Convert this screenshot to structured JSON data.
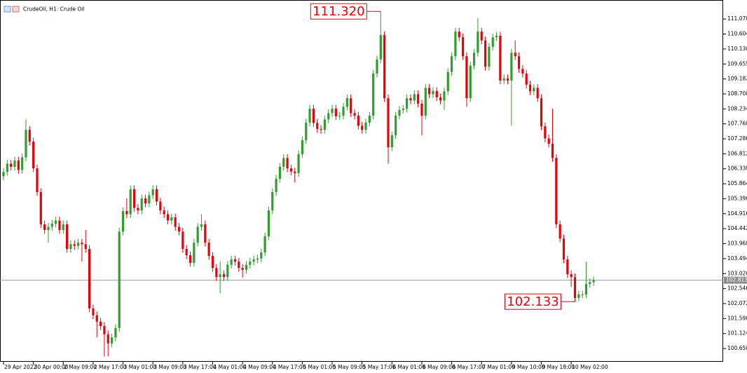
{
  "chart_data": {
    "type": "candlestick",
    "title": "CrudeOil, H1:  Crude Oil",
    "up_color": "#2f9e2f",
    "down_color": "#e8000b",
    "categories": [
      "29 Apr 2022",
      null,
      null,
      null,
      null,
      null,
      null,
      null,
      "30 Apr 00:00",
      null,
      null,
      null,
      null,
      null,
      null,
      null,
      "2 May 09:00",
      null,
      null,
      null,
      null,
      null,
      null,
      null,
      "2 May 17:00",
      null,
      null,
      null,
      null,
      null,
      null,
      null,
      "3 May 01:00",
      null,
      null,
      null,
      null,
      null,
      null,
      null,
      "3 May 09:00",
      null,
      null,
      null,
      null,
      null,
      null,
      null,
      "3 May 17:00",
      null,
      null,
      null,
      null,
      null,
      null,
      null,
      "4 May 01:00",
      null,
      null,
      null,
      null,
      null,
      null,
      null,
      "4 May 09:00",
      null,
      null,
      null,
      null,
      null,
      null,
      null,
      "4 May 17:00",
      null,
      null,
      null,
      null,
      null,
      null,
      null,
      "5 May 01:00",
      null,
      null,
      null,
      null,
      null,
      null,
      null,
      "5 May 09:00",
      null,
      null,
      null,
      null,
      null,
      null,
      null,
      "5 May 17:00",
      null,
      null,
      null,
      null,
      null,
      null,
      null,
      "6 May 01:00",
      null,
      null,
      null,
      null,
      null,
      null,
      null,
      "6 May 09:00",
      null,
      null,
      null,
      null,
      null,
      null,
      null,
      "6 May 17:00",
      null,
      null,
      null,
      null,
      null,
      null,
      null,
      "7 May 01:00",
      null,
      null,
      null,
      null,
      null,
      null,
      null,
      "9 May 10:00",
      null,
      null,
      null,
      null,
      null,
      null,
      null,
      "9 May 18:00",
      null,
      null,
      null,
      null,
      null,
      null,
      null,
      "10 May 02:00",
      null,
      null,
      null,
      null,
      null,
      null
    ],
    "open": [
      106.1,
      106.24,
      106.5,
      106.4,
      106.6,
      106.3,
      106.7,
      107.57,
      107.2,
      106.35,
      105.6,
      104.58,
      104.4,
      104.5,
      104.6,
      104.7,
      104.4,
      104.58,
      103.8,
      103.95,
      103.9,
      104.0,
      103.95,
      103.8,
      101.92,
      101.7,
      101.5,
      101.36,
      101.1,
      100.81,
      101.0,
      101.3,
      104.35,
      105.0,
      104.9,
      105.69,
      105.1,
      105.02,
      105.4,
      105.24,
      105.5,
      105.69,
      105.3,
      105.02,
      104.9,
      104.7,
      104.8,
      104.5,
      104.35,
      103.8,
      103.6,
      103.36,
      104.0,
      104.5,
      104.58,
      104.0,
      103.58,
      103.2,
      102.91,
      103.0,
      102.91,
      103.3,
      103.47,
      103.4,
      103.2,
      103.14,
      103.3,
      103.4,
      103.47,
      103.5,
      103.69,
      104.2,
      105.02,
      105.6,
      106.02,
      106.4,
      106.68,
      106.35,
      106.25,
      106.2,
      106.8,
      107.24,
      107.8,
      108.24,
      107.79,
      107.6,
      107.57,
      107.9,
      108.1,
      108.24,
      108.0,
      108.02,
      108.3,
      108.57,
      108.1,
      108.02,
      107.7,
      107.57,
      107.8,
      108.02,
      109.35,
      109.8,
      110.57,
      108.57,
      107.02,
      107.4,
      108.02,
      108.2,
      108.24,
      108.57,
      108.5,
      108.7,
      108.4,
      108.02,
      108.9,
      108.7,
      108.8,
      108.6,
      108.5,
      108.79,
      109.4,
      109.9,
      110.68,
      110.5,
      109.9,
      108.57,
      109.6,
      110.01,
      110.68,
      110.4,
      109.57,
      110.2,
      110.5,
      110.55,
      109.13,
      109.2,
      109.13,
      110.01,
      109.9,
      109.5,
      109.35,
      109.0,
      108.79,
      108.9,
      108.57,
      107.68,
      107.3,
      107.13,
      106.68,
      104.58,
      104.13,
      103.47,
      103.0,
      102.91,
      102.25,
      102.36,
      102.36,
      102.69,
      102.75
    ],
    "high": [
      106.36,
      106.62,
      106.62,
      106.72,
      106.72,
      106.82,
      107.9,
      107.69,
      107.32,
      106.47,
      105.72,
      104.7,
      104.62,
      104.72,
      104.82,
      104.82,
      104.7,
      104.7,
      104.07,
      104.07,
      104.12,
      104.12,
      104.4,
      103.92,
      102.04,
      101.82,
      101.62,
      101.48,
      101.22,
      101.12,
      101.42,
      104.47,
      105.12,
      105.4,
      105.81,
      105.81,
      105.22,
      105.52,
      105.52,
      105.62,
      105.81,
      105.81,
      105.42,
      105.14,
      105.02,
      104.92,
      104.92,
      104.62,
      104.47,
      103.92,
      103.72,
      104.12,
      104.62,
      104.9,
      104.7,
      104.12,
      103.7,
      103.32,
      103.4,
      103.12,
      103.42,
      103.59,
      103.59,
      103.52,
      103.32,
      103.42,
      103.52,
      103.59,
      103.62,
      103.81,
      104.32,
      105.14,
      105.72,
      106.14,
      106.52,
      106.8,
      106.8,
      106.47,
      106.37,
      106.92,
      107.36,
      107.92,
      108.36,
      108.36,
      107.91,
      107.72,
      108.02,
      108.22,
      108.36,
      108.36,
      108.14,
      108.42,
      108.69,
      108.69,
      108.22,
      108.14,
      107.82,
      107.92,
      108.14,
      109.47,
      109.92,
      111.32,
      110.69,
      108.69,
      107.52,
      108.14,
      108.32,
      108.36,
      108.69,
      108.69,
      108.82,
      108.82,
      108.52,
      109.02,
      109.02,
      108.92,
      108.92,
      108.72,
      108.91,
      109.52,
      110.02,
      110.8,
      110.8,
      110.62,
      110.02,
      109.72,
      110.13,
      111.1,
      110.8,
      110.52,
      110.32,
      110.62,
      110.67,
      110.67,
      109.32,
      109.32,
      110.13,
      110.4,
      110.02,
      109.62,
      109.47,
      109.12,
      109.02,
      109.02,
      108.69,
      107.8,
      107.42,
      108.24,
      106.8,
      104.7,
      104.25,
      103.59,
      103.12,
      103.03,
      102.48,
      102.48,
      103.4,
      102.87,
      102.93
    ],
    "low": [
      105.98,
      106.12,
      106.28,
      106.28,
      106.18,
      106.18,
      106.58,
      107.08,
      106.23,
      105.48,
      104.46,
      104.28,
      104.0,
      104.38,
      104.48,
      104.28,
      104.28,
      103.68,
      103.68,
      103.78,
      103.78,
      103.4,
      103.68,
      101.8,
      101.58,
      101.0,
      101.24,
      100.4,
      100.4,
      100.69,
      100.88,
      101.18,
      104.23,
      104.78,
      104.78,
      104.98,
      104.9,
      104.9,
      105.12,
      105.12,
      105.38,
      105.18,
      104.9,
      104.78,
      104.58,
      104.58,
      104.38,
      104.23,
      103.68,
      103.48,
      103.24,
      103.24,
      103.88,
      104.38,
      103.88,
      103.46,
      103.08,
      102.79,
      102.4,
      102.79,
      102.79,
      103.18,
      103.28,
      103.08,
      102.9,
      103.02,
      103.18,
      103.28,
      103.35,
      103.38,
      103.57,
      104.08,
      104.9,
      105.48,
      105.9,
      106.28,
      106.23,
      106.13,
      105.9,
      106.08,
      106.68,
      107.12,
      107.68,
      107.67,
      107.48,
      107.45,
      107.45,
      107.78,
      107.98,
      107.88,
      107.88,
      107.9,
      108.18,
      107.98,
      107.9,
      107.58,
      107.45,
      107.45,
      107.68,
      107.9,
      109.23,
      109.68,
      108.45,
      106.5,
      106.9,
      107.28,
      107.9,
      108.08,
      108.12,
      108.38,
      108.38,
      108.28,
      107.4,
      107.9,
      108.58,
      108.58,
      108.48,
      108.38,
      108.2,
      108.67,
      109.28,
      109.78,
      110.38,
      109.78,
      108.3,
      108.45,
      109.48,
      109.89,
      110.28,
      109.45,
      109.45,
      110.08,
      110.38,
      109.01,
      109.01,
      109.01,
      107.7,
      109.78,
      109.38,
      109.23,
      108.88,
      108.67,
      108.67,
      108.45,
      107.56,
      107.18,
      107.01,
      106.56,
      104.46,
      104.01,
      103.35,
      102.88,
      102.6,
      102.133,
      102.15,
      102.24,
      102.24,
      102.57,
      102.63
    ],
    "close": [
      106.24,
      106.5,
      106.4,
      106.6,
      106.3,
      106.7,
      107.57,
      107.2,
      106.35,
      105.6,
      104.58,
      104.4,
      104.5,
      104.6,
      104.7,
      104.4,
      104.58,
      103.8,
      103.95,
      103.9,
      104.0,
      103.95,
      103.8,
      101.92,
      101.7,
      101.5,
      101.36,
      101.1,
      100.81,
      101.0,
      101.3,
      104.35,
      105.0,
      104.9,
      105.69,
      105.1,
      105.02,
      105.4,
      105.24,
      105.5,
      105.69,
      105.3,
      105.02,
      104.9,
      104.7,
      104.8,
      104.5,
      104.35,
      103.8,
      103.6,
      103.36,
      104.0,
      104.5,
      104.58,
      104.0,
      103.58,
      103.2,
      102.91,
      103.0,
      102.91,
      103.3,
      103.47,
      103.4,
      103.2,
      103.14,
      103.3,
      103.4,
      103.47,
      103.5,
      103.69,
      104.2,
      105.02,
      105.6,
      106.02,
      106.4,
      106.68,
      106.35,
      106.25,
      106.2,
      106.8,
      107.24,
      107.8,
      108.24,
      107.79,
      107.6,
      107.57,
      107.9,
      108.1,
      108.24,
      108.0,
      108.02,
      108.3,
      108.57,
      108.1,
      108.02,
      107.7,
      107.57,
      107.8,
      108.02,
      109.35,
      109.8,
      110.57,
      108.57,
      107.02,
      107.4,
      108.02,
      108.2,
      108.24,
      108.57,
      108.5,
      108.7,
      108.4,
      108.02,
      108.9,
      108.7,
      108.8,
      108.6,
      108.5,
      108.79,
      109.4,
      109.9,
      110.68,
      110.5,
      109.9,
      108.57,
      109.6,
      110.01,
      110.68,
      110.4,
      109.57,
      110.2,
      110.5,
      110.55,
      109.13,
      109.2,
      109.13,
      110.01,
      109.9,
      109.5,
      109.35,
      109.0,
      108.79,
      108.9,
      108.57,
      107.68,
      107.3,
      107.13,
      106.68,
      104.58,
      104.13,
      103.47,
      103.0,
      102.91,
      102.25,
      102.36,
      102.36,
      102.69,
      102.75,
      102.813
    ],
    "ylim": [
      100.23,
      111.68
    ],
    "yticks": [
      111.078,
      110.604,
      {
        "value": 110.13,
        "label": "110.130"
      },
      109.655,
      109.182,
      108.708,
      108.234,
      {
        "value": 107.76,
        "label": "107.760"
      },
      107.286,
      106.812,
      106.338,
      105.864,
      {
        "value": 105.39,
        "label": "105.390"
      },
      104.916,
      104.442,
      103.968,
      103.494,
      {
        "value": 103.02,
        "label": "103.020"
      },
      102.546,
      102.072,
      101.598,
      101.124,
      {
        "value": 100.65,
        "label": "100.650"
      }
    ],
    "current_price": 102.813,
    "annotations": [
      {
        "value": 111.32,
        "label": "111.320"
      },
      {
        "value": 102.133,
        "label": "102.133"
      }
    ]
  }
}
